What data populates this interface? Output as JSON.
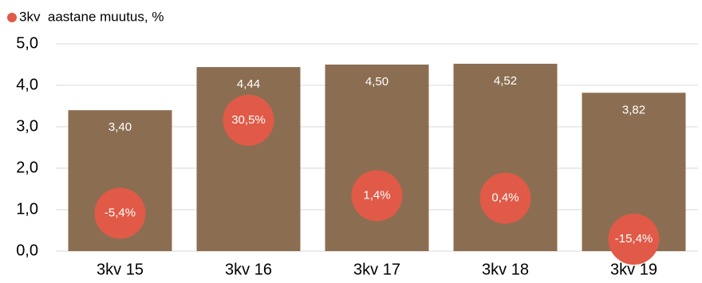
{
  "chart_data": {
    "type": "bar",
    "categories": [
      "3kv 15",
      "3kv 16",
      "3kv 17",
      "3kv 18",
      "3kv 19"
    ],
    "series": [
      {
        "color": "#8b6e52",
        "values": [
          3.4,
          4.44,
          4.5,
          4.52,
          3.82
        ],
        "value_labels": [
          "3,40",
          "4,44",
          "4,50",
          "4,52",
          "3,82"
        ]
      },
      {
        "name": "3kv  aastane muutus, %",
        "type": "scatter",
        "axis": "y2",
        "color": "#e05a47",
        "values": [
          -5.4,
          30.5,
          1.4,
          0.4,
          -15.4
        ],
        "value_labels": [
          "-5,4%",
          "30,5%",
          "1,4%",
          "0,4%",
          "-15,4%"
        ]
      }
    ],
    "ylim": [
      0,
      5
    ],
    "yticks": [
      {
        "value": 0,
        "label": "0,0"
      },
      {
        "value": 1,
        "label": "1,0"
      },
      {
        "value": 2,
        "label": "2,0"
      },
      {
        "value": 3,
        "label": "3,0"
      },
      {
        "value": 4,
        "label": "4,0"
      },
      {
        "value": 5,
        "label": "5,0"
      }
    ],
    "y2lim": [
      -20,
      60
    ],
    "grid": true,
    "legend": "top-left"
  }
}
